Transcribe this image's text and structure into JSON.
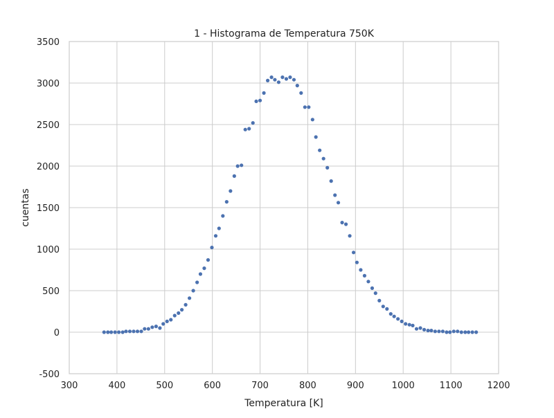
{
  "chart_data": {
    "type": "scatter",
    "title": "1 - Histograma de Temperatura 750K",
    "xlabel": "Temperatura [K]",
    "ylabel": "cuentas",
    "xlim": [
      300,
      1200
    ],
    "ylim": [
      -500,
      3500
    ],
    "xticks": [
      300,
      400,
      500,
      600,
      700,
      800,
      900,
      1000,
      1100,
      1200
    ],
    "yticks": [
      -500,
      0,
      500,
      1000,
      1500,
      2000,
      2500,
      3000,
      3500
    ],
    "grid": true,
    "legend": "none",
    "colors": {
      "points": "#4c72b0",
      "grid": "#cccccc",
      "frame": "#cccccc",
      "text": "#222222"
    },
    "series": [
      {
        "x": [
          373,
          381,
          388,
          396,
          404,
          412,
          419,
          427,
          435,
          443,
          451,
          458,
          466,
          474,
          482,
          490,
          497,
          505,
          513,
          521,
          529,
          536,
          544,
          552,
          560,
          568,
          575,
          583,
          591,
          599,
          607,
          614,
          622,
          630,
          638,
          646,
          653,
          661,
          669,
          677,
          685,
          692,
          700,
          708,
          716,
          724,
          731,
          739,
          747,
          755,
          763,
          771,
          778,
          786,
          794,
          802,
          810,
          817,
          825,
          833,
          841,
          849,
          857,
          864,
          872,
          880,
          888,
          896,
          903,
          911,
          919,
          927,
          935,
          942,
          950,
          958,
          966,
          974,
          981,
          989,
          997,
          1005,
          1013,
          1020,
          1028,
          1036,
          1044,
          1052,
          1059,
          1067,
          1075,
          1083,
          1091,
          1098,
          1106,
          1114,
          1122,
          1130,
          1137,
          1145,
          1153
        ],
        "y": [
          0,
          0,
          0,
          0,
          0,
          0,
          10,
          10,
          10,
          10,
          10,
          40,
          40,
          60,
          70,
          50,
          100,
          130,
          150,
          200,
          230,
          270,
          330,
          410,
          500,
          600,
          700,
          770,
          870,
          1020,
          1160,
          1250,
          1400,
          1570,
          1700,
          1880,
          2000,
          2010,
          2440,
          2450,
          2520,
          2780,
          2790,
          2880,
          3030,
          3070,
          3040,
          3010,
          3070,
          3050,
          3070,
          3040,
          2970,
          2880,
          2710,
          2710,
          2560,
          2350,
          2190,
          2090,
          1980,
          1820,
          1650,
          1560,
          1320,
          1300,
          1160,
          960,
          840,
          750,
          680,
          610,
          530,
          470,
          380,
          310,
          280,
          220,
          190,
          160,
          130,
          100,
          90,
          80,
          40,
          50,
          30,
          20,
          20,
          10,
          10,
          10,
          0,
          0,
          10,
          10,
          0,
          0,
          0,
          0,
          0
        ]
      }
    ]
  }
}
